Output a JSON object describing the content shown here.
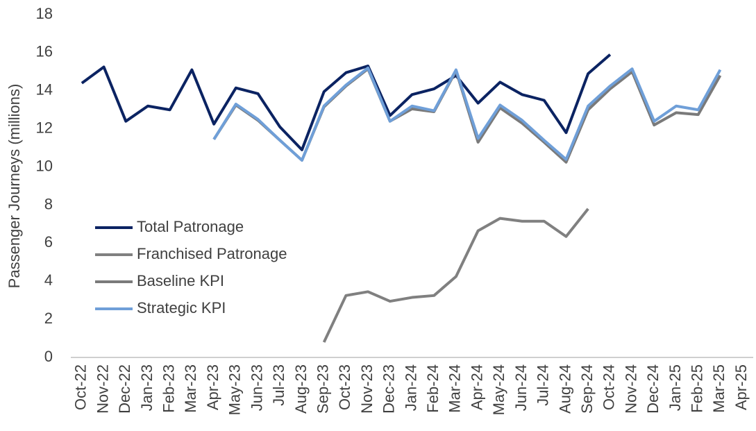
{
  "chart_data": {
    "type": "line",
    "ylabel": "Passenger Journeys (millions)",
    "categories": [
      "Oct-22",
      "Nov-22",
      "Dec-22",
      "Jan-23",
      "Feb-23",
      "Mar-23",
      "Apr-23",
      "May-23",
      "Jun-23",
      "Jul-23",
      "Aug-23",
      "Sep-23",
      "Oct-23",
      "Nov-23",
      "Dec-23",
      "Jan-24",
      "Feb-24",
      "Mar-24",
      "Apr-24",
      "May-24",
      "Jun-24",
      "Jul-24",
      "Aug-24",
      "Sep-24",
      "Oct-24",
      "Nov-24",
      "Dec-24",
      "Jan-25",
      "Feb-25",
      "Mar-25",
      "Apr-25"
    ],
    "series": [
      {
        "name": "Total Patronage",
        "color": "#0b2362",
        "values": [
          14.4,
          15.25,
          12.4,
          13.2,
          13.0,
          15.1,
          12.25,
          14.15,
          13.85,
          12.1,
          10.9,
          13.95,
          14.95,
          15.3,
          12.7,
          13.8,
          14.1,
          14.8,
          13.35,
          14.45,
          13.8,
          13.5,
          11.8,
          14.9,
          15.9,
          null,
          null,
          null,
          null,
          null,
          null
        ]
      },
      {
        "name": "Franchised Patronage",
        "color": "#808080",
        "values": [
          null,
          null,
          null,
          null,
          null,
          null,
          null,
          null,
          null,
          null,
          null,
          0.8,
          3.25,
          3.45,
          2.95,
          3.15,
          3.25,
          4.25,
          6.65,
          7.3,
          7.15,
          7.15,
          6.35,
          7.8,
          null,
          null,
          null,
          null,
          null,
          null,
          null
        ]
      },
      {
        "name": "Baseline KPI",
        "color": "#7a7a7a",
        "values": [
          null,
          null,
          null,
          null,
          null,
          null,
          11.45,
          13.25,
          12.45,
          11.4,
          10.35,
          13.15,
          14.25,
          15.15,
          12.4,
          13.05,
          12.9,
          15.05,
          11.3,
          13.1,
          12.3,
          11.3,
          10.25,
          13.0,
          14.1,
          15.0,
          12.2,
          12.85,
          12.75,
          14.8,
          null
        ]
      },
      {
        "name": "Strategic KPI",
        "color": "#6f9fd8",
        "values": [
          null,
          null,
          null,
          null,
          null,
          null,
          11.45,
          13.3,
          12.5,
          11.4,
          10.35,
          13.2,
          14.3,
          15.2,
          12.4,
          13.2,
          12.95,
          15.1,
          11.5,
          13.25,
          12.45,
          11.4,
          10.4,
          13.2,
          14.25,
          15.15,
          12.4,
          13.2,
          13.0,
          15.1,
          null
        ]
      }
    ],
    "ylim": [
      0,
      18
    ],
    "yticks": [
      0,
      2,
      4,
      6,
      8,
      10,
      12,
      14,
      16,
      18
    ],
    "grid": false
  }
}
